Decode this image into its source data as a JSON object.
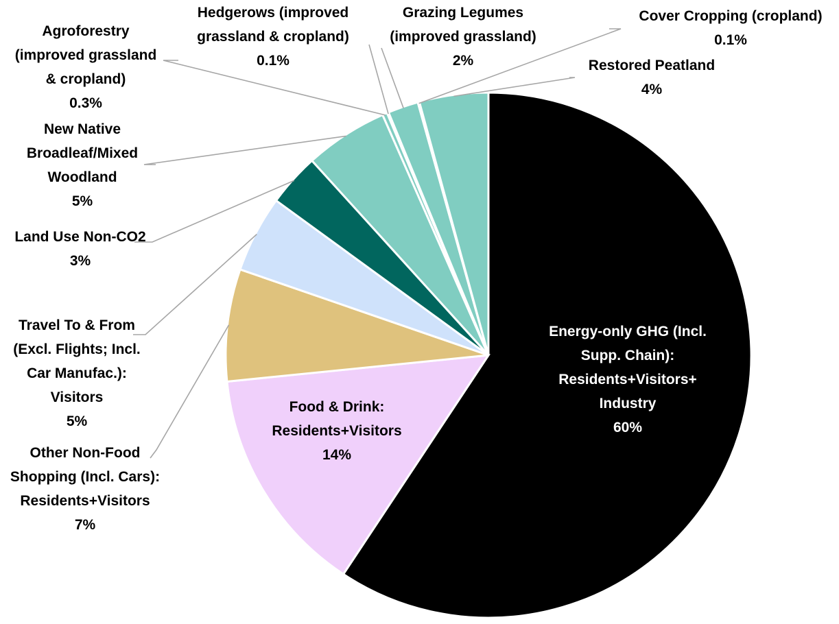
{
  "chart_data": {
    "type": "pie",
    "title": "",
    "start_angle_deg": 0,
    "direction": "clockwise",
    "legend": "none",
    "slices": [
      {
        "id": "energy",
        "label_lines": [
          "Energy-only GHG (Incl.",
          "Supp. Chain):",
          "Residents+Visitors+",
          "Industry"
        ],
        "percent_label": "60%",
        "value": 60.2,
        "color": "#000000"
      },
      {
        "id": "food",
        "label_lines": [
          "Food & Drink:",
          "Residents+Visitors"
        ],
        "percent_label": "14%",
        "value": 14.3,
        "color": "#f0d0fb"
      },
      {
        "id": "shopping",
        "label_lines": [
          "Other Non-Food",
          "Shopping (Incl. Cars):",
          "Residents+Visitors"
        ],
        "percent_label": "7%",
        "value": 7.0,
        "color": "#dfc27d"
      },
      {
        "id": "travel",
        "label_lines": [
          "Travel To & From",
          "(Excl. Flights; Incl.",
          "Car Manufac.):",
          "Visitors"
        ],
        "percent_label": "5%",
        "value": 4.8,
        "color": "#cfe2fb"
      },
      {
        "id": "landuse",
        "label_lines": [
          "Land Use Non-CO2"
        ],
        "percent_label": "3%",
        "value": 3.3,
        "color": "#01665e"
      },
      {
        "id": "woodland",
        "label_lines": [
          "New Native",
          "Broadleaf/Mixed",
          "Woodland"
        ],
        "percent_label": "5%",
        "value": 5.2,
        "color": "#80cdc1"
      },
      {
        "id": "agroforestry",
        "label_lines": [
          "Agroforestry",
          "(improved grassland",
          "& cropland)"
        ],
        "percent_label": "0.3%",
        "value": 0.3,
        "color": "#80cdc1"
      },
      {
        "id": "hedgerows",
        "label_lines": [
          "Hedgerows (improved",
          "grassland & cropland)"
        ],
        "percent_label": "0.1%",
        "value": 0.1,
        "color": "#80cdc1"
      },
      {
        "id": "legumes",
        "label_lines": [
          "Grazing Legumes",
          "(improved grassland)"
        ],
        "percent_label": "2%",
        "value": 1.9,
        "color": "#80cdc1"
      },
      {
        "id": "covercrop",
        "label_lines": [
          "Cover Cropping (cropland)"
        ],
        "percent_label": "0.1%",
        "value": 0.1,
        "color": "#80cdc1"
      },
      {
        "id": "peatland",
        "label_lines": [
          "Restored Peatland"
        ],
        "percent_label": "4%",
        "value": 4.3,
        "color": "#80cdc1"
      }
    ]
  }
}
